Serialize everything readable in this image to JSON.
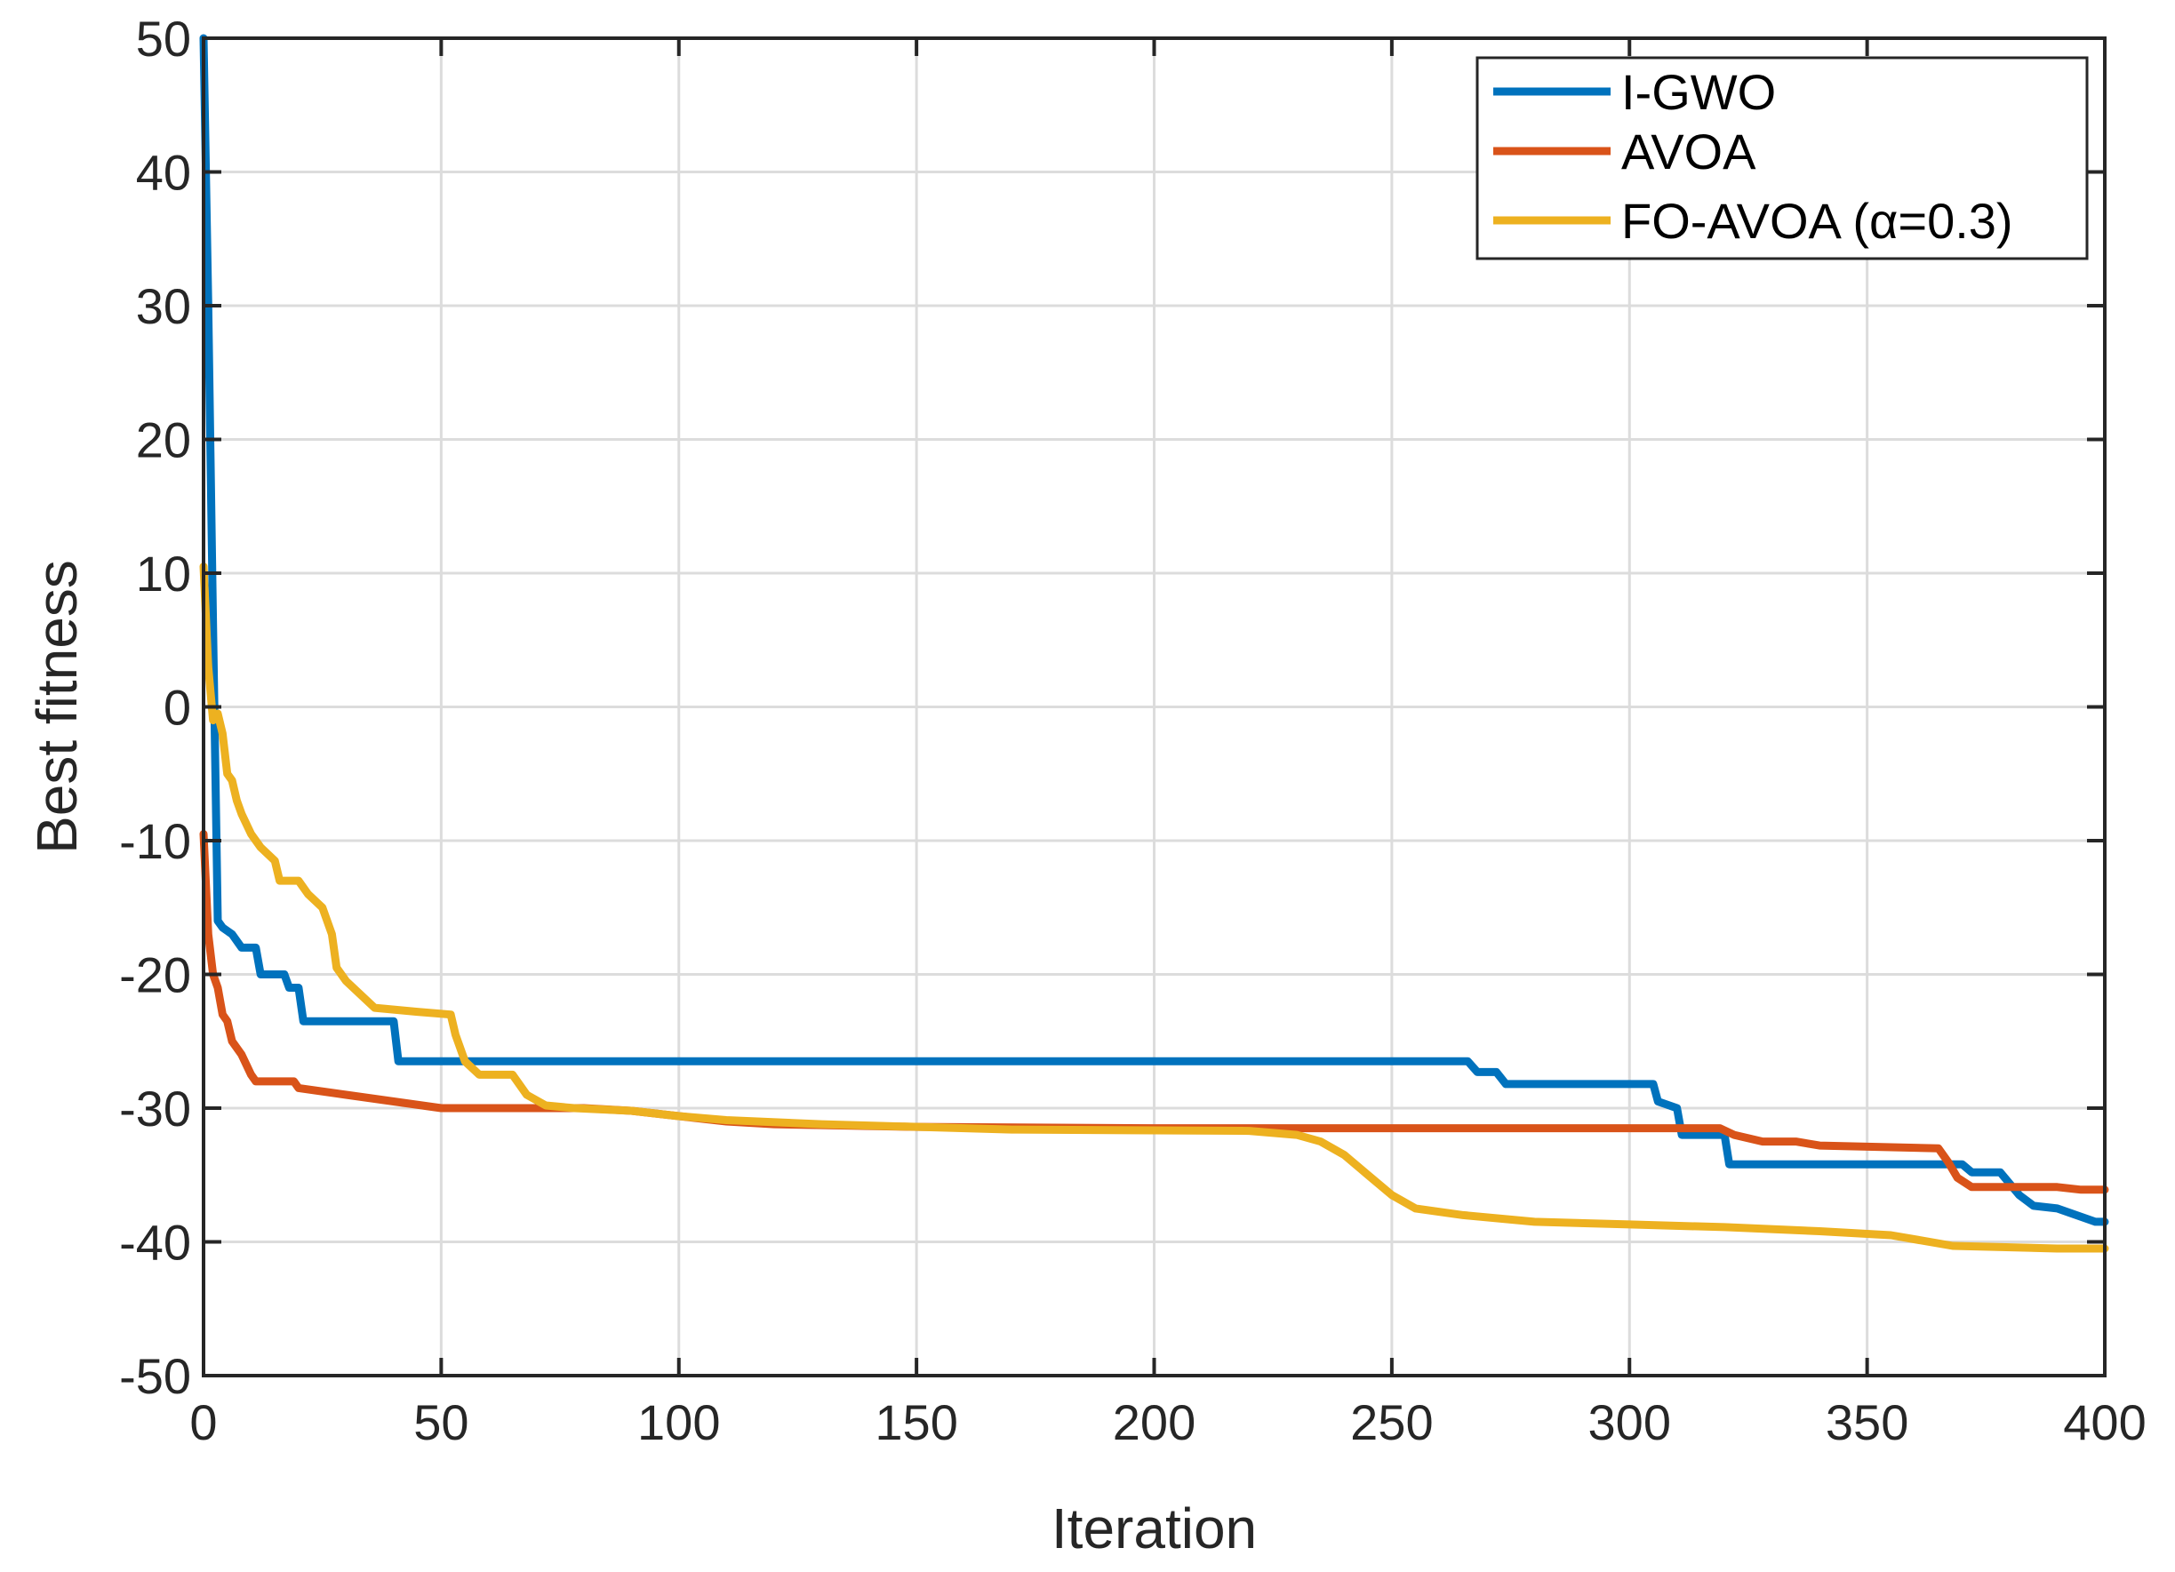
{
  "chart_data": {
    "type": "line",
    "title": "",
    "xlabel": "Iteration",
    "ylabel": "Best fitness",
    "xlim": [
      0,
      400
    ],
    "ylim": [
      -50,
      50
    ],
    "xticks": [
      0,
      50,
      100,
      150,
      200,
      250,
      300,
      350,
      400
    ],
    "yticks": [
      -50,
      -40,
      -30,
      -20,
      -10,
      0,
      10,
      20,
      30,
      40,
      50
    ],
    "xtick_labels": [
      "0",
      "50",
      "100",
      "150",
      "200",
      "250",
      "300",
      "350",
      "400"
    ],
    "ytick_labels": [
      "-50",
      "-40",
      "-30",
      "-20",
      "-10",
      "0",
      "10",
      "20",
      "30",
      "40",
      "50"
    ],
    "grid": true,
    "legend_position": "top-right",
    "series": [
      {
        "name": "I-GWO",
        "color": "#0072BD",
        "points": [
          [
            0,
            50
          ],
          [
            1,
            30
          ],
          [
            2,
            6
          ],
          [
            3,
            -16
          ],
          [
            4,
            -16.5
          ],
          [
            6,
            -17
          ],
          [
            8,
            -18
          ],
          [
            11,
            -18
          ],
          [
            12,
            -20
          ],
          [
            17,
            -20
          ],
          [
            18,
            -21
          ],
          [
            20,
            -21
          ],
          [
            21,
            -23.5
          ],
          [
            40,
            -23.5
          ],
          [
            41,
            -26.5
          ],
          [
            266,
            -26.5
          ],
          [
            268,
            -27.3
          ],
          [
            272,
            -27.3
          ],
          [
            274,
            -28.2
          ],
          [
            305,
            -28.2
          ],
          [
            306,
            -29.5
          ],
          [
            310,
            -30
          ],
          [
            311,
            -32
          ],
          [
            320,
            -32
          ],
          [
            321,
            -34.2
          ],
          [
            370,
            -34.2
          ],
          [
            372,
            -34.8
          ],
          [
            378,
            -34.8
          ],
          [
            382,
            -36.5
          ],
          [
            385,
            -37.3
          ],
          [
            390,
            -37.5
          ],
          [
            394,
            -38
          ],
          [
            398,
            -38.5
          ],
          [
            400,
            -38.5
          ]
        ]
      },
      {
        "name": "AVOA",
        "color": "#D95319",
        "points": [
          [
            0,
            -9.5
          ],
          [
            1,
            -17
          ],
          [
            2,
            -20
          ],
          [
            3,
            -21
          ],
          [
            4,
            -23
          ],
          [
            5,
            -23.5
          ],
          [
            6,
            -25
          ],
          [
            8,
            -26
          ],
          [
            10,
            -27.5
          ],
          [
            11,
            -28
          ],
          [
            19,
            -28
          ],
          [
            20,
            -28.5
          ],
          [
            30,
            -29
          ],
          [
            40,
            -29.5
          ],
          [
            50,
            -30
          ],
          [
            80,
            -30
          ],
          [
            90,
            -30.2
          ],
          [
            100,
            -30.6
          ],
          [
            110,
            -31
          ],
          [
            120,
            -31.2
          ],
          [
            150,
            -31.4
          ],
          [
            200,
            -31.5
          ],
          [
            319,
            -31.5
          ],
          [
            322,
            -32
          ],
          [
            328,
            -32.5
          ],
          [
            335,
            -32.5
          ],
          [
            340,
            -32.8
          ],
          [
            365,
            -33
          ],
          [
            367,
            -34
          ],
          [
            369,
            -35.2
          ],
          [
            372,
            -35.9
          ],
          [
            390,
            -35.9
          ],
          [
            395,
            -36.1
          ],
          [
            400,
            -36.1
          ]
        ]
      },
      {
        "name": "FO-AVOA (α=0.3)",
        "color": "#EDB120",
        "points": [
          [
            0,
            10.5
          ],
          [
            1,
            3
          ],
          [
            2,
            -1
          ],
          [
            3,
            -0.5
          ],
          [
            4,
            -2
          ],
          [
            5,
            -5
          ],
          [
            6,
            -5.5
          ],
          [
            7,
            -7
          ],
          [
            8,
            -8
          ],
          [
            10,
            -9.5
          ],
          [
            12,
            -10.5
          ],
          [
            15,
            -11.5
          ],
          [
            16,
            -13
          ],
          [
            20,
            -13
          ],
          [
            22,
            -14
          ],
          [
            25,
            -15
          ],
          [
            27,
            -17
          ],
          [
            28,
            -19.5
          ],
          [
            30,
            -20.5
          ],
          [
            33,
            -21.5
          ],
          [
            36,
            -22.5
          ],
          [
            45,
            -22.8
          ],
          [
            52,
            -23
          ],
          [
            53,
            -24.5
          ],
          [
            55,
            -26.5
          ],
          [
            58,
            -27.5
          ],
          [
            65,
            -27.5
          ],
          [
            68,
            -29
          ],
          [
            72,
            -29.8
          ],
          [
            78,
            -30
          ],
          [
            90,
            -30.2
          ],
          [
            100,
            -30.6
          ],
          [
            110,
            -30.9
          ],
          [
            130,
            -31.2
          ],
          [
            170,
            -31.6
          ],
          [
            220,
            -31.7
          ],
          [
            230,
            -32
          ],
          [
            235,
            -32.5
          ],
          [
            240,
            -33.5
          ],
          [
            245,
            -35
          ],
          [
            250,
            -36.5
          ],
          [
            255,
            -37.5
          ],
          [
            265,
            -38
          ],
          [
            280,
            -38.5
          ],
          [
            300,
            -38.7
          ],
          [
            320,
            -38.9
          ],
          [
            340,
            -39.2
          ],
          [
            355,
            -39.5
          ],
          [
            368,
            -40.3
          ],
          [
            390,
            -40.5
          ],
          [
            400,
            -40.5
          ]
        ]
      }
    ]
  }
}
